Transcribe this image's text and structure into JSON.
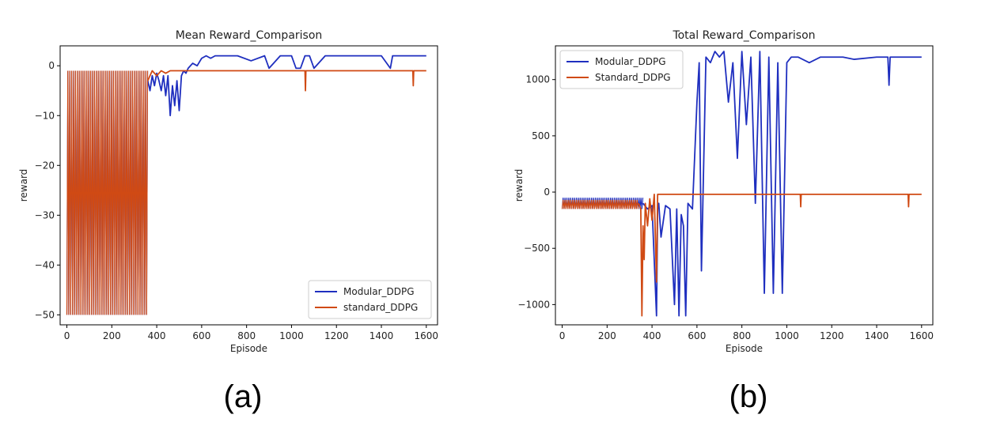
{
  "figure": {
    "panel_labels": [
      "(a)",
      "(b)"
    ],
    "colors": {
      "modular": "#1f2fbf",
      "standard": "#d04a14",
      "axes": "#000000",
      "background": "#ffffff"
    }
  },
  "chart_data": [
    {
      "type": "line",
      "title": "Mean Reward_Comparison",
      "xlabel": "Episode",
      "ylabel": "reward",
      "xlim": [
        -30,
        1650
      ],
      "ylim": [
        -52,
        4
      ],
      "xticks": [
        0,
        200,
        400,
        600,
        800,
        1000,
        1200,
        1400,
        1600
      ],
      "yticks": [
        0,
        -10,
        -20,
        -30,
        -40,
        -50
      ],
      "legend_position": "lower-right",
      "series": [
        {
          "name": "Modular_DDPG",
          "color": "#1f2fbf",
          "segments": [
            {
              "x": [
                0,
                360
              ],
              "band": [
                -50,
                -1
              ]
            },
            {
              "x": [
                360,
                370,
                380,
                390,
                400,
                410,
                420,
                430,
                440,
                450,
                460,
                470,
                480,
                490,
                500,
                510,
                520,
                530,
                540,
                560,
                580,
                600,
                620,
                640,
                660,
                700,
                760,
                820,
                880,
                900,
                950,
                1000,
                1020,
                1040,
                1060,
                1080,
                1100,
                1150,
                1200,
                1300,
                1400,
                1440,
                1450,
                1460,
                1500,
                1550,
                1600
              ],
              "y": [
                -3,
                -5,
                -2,
                -4,
                -1.5,
                -3,
                -5,
                -2,
                -6,
                -2,
                -10,
                -4,
                -8,
                -3,
                -9,
                -2,
                -1,
                -1.5,
                -0.5,
                0.5,
                0,
                1.5,
                2,
                1.5,
                2,
                2,
                2,
                1,
                2,
                -0.5,
                2,
                2,
                -0.5,
                -0.5,
                2,
                2,
                -0.5,
                2,
                2,
                2,
                2,
                -0.5,
                2,
                2,
                2,
                2,
                2
              ]
            }
          ]
        },
        {
          "name": "standard_DDPG",
          "color": "#d04a14",
          "segments": [
            {
              "x": [
                0,
                360
              ],
              "band": [
                -50,
                -1
              ]
            },
            {
              "x": [
                360,
                380,
                400,
                420,
                440,
                460,
                480,
                500,
                1060,
                1062,
                1064,
                1540,
                1542,
                1544,
                1600
              ],
              "y": [
                -3,
                -1,
                -2,
                -1,
                -1.5,
                -1,
                -1,
                -1,
                -1,
                -5,
                -1,
                -1,
                -4,
                -1,
                -1
              ]
            }
          ]
        }
      ]
    },
    {
      "type": "line",
      "title": "Total Reward_Comparison",
      "xlabel": "Episode",
      "ylabel": "reward",
      "xlim": [
        -30,
        1650
      ],
      "ylim": [
        -1180,
        1300
      ],
      "xticks": [
        0,
        200,
        400,
        600,
        800,
        1000,
        1200,
        1400,
        1600
      ],
      "yticks": [
        1000,
        500,
        0,
        -500,
        -1000
      ],
      "legend_position": "top-left",
      "series": [
        {
          "name": "Modular_DDPG",
          "color": "#1f2fbf",
          "segments": [
            {
              "x": [
                0,
                360
              ],
              "band": [
                -150,
                -50
              ]
            },
            {
              "x": [
                360,
                380,
                400,
                420,
                425,
                430,
                440,
                460,
                480,
                500,
                510,
                520,
                530,
                540,
                550,
                560,
                580,
                600,
                610,
                620,
                640,
                660,
                680,
                700,
                720,
                740,
                760,
                780,
                800,
                820,
                840,
                860,
                880,
                900,
                920,
                940,
                960,
                980,
                1000,
                1020,
                1050,
                1100,
                1150,
                1200,
                1250,
                1300,
                1400,
                1450,
                1455,
                1460,
                1500,
                1550,
                1600
              ],
              "y": [
                -100,
                -150,
                -120,
                -1100,
                -150,
                -100,
                -400,
                -120,
                -150,
                -1000,
                -150,
                -1100,
                -200,
                -300,
                -1100,
                -100,
                -150,
                800,
                1150,
                -700,
                1200,
                1150,
                1250,
                1200,
                1250,
                800,
                1150,
                300,
                1250,
                600,
                1200,
                -100,
                1250,
                -900,
                1200,
                -900,
                1150,
                -900,
                1150,
                1200,
                1200,
                1150,
                1200,
                1200,
                1200,
                1180,
                1200,
                1200,
                950,
                1200,
                1200,
                1200,
                1200
              ]
            }
          ]
        },
        {
          "name": "Standard_DDPG",
          "color": "#d04a14",
          "segments": [
            {
              "x": [
                0,
                340
              ],
              "band": [
                -150,
                -70
              ]
            },
            {
              "x": [
                340,
                350,
                355,
                360,
                365,
                370,
                380,
                390,
                400,
                410,
                420,
                425,
                430,
                440,
                500,
                1060,
                1062,
                1064,
                1540,
                1542,
                1544,
                1600
              ],
              "y": [
                -100,
                -150,
                -1100,
                -300,
                -600,
                -100,
                -300,
                -60,
                -250,
                -20,
                -800,
                -20,
                -20,
                -20,
                -20,
                -20,
                -130,
                -20,
                -20,
                -130,
                -20,
                -20
              ]
            }
          ]
        }
      ]
    }
  ]
}
